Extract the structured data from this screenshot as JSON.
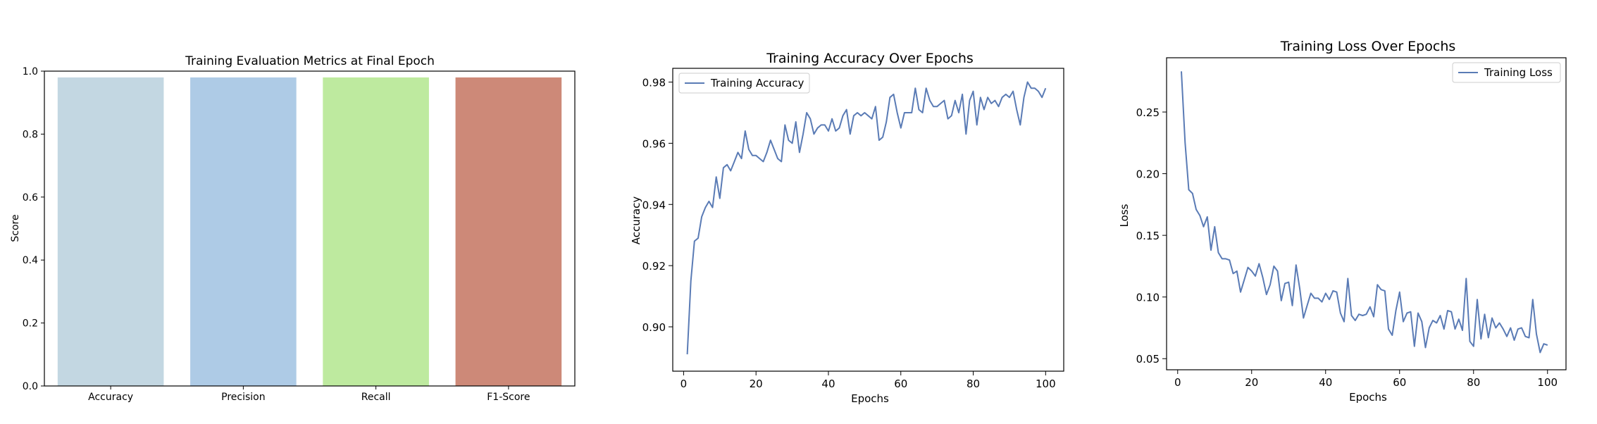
{
  "chart_data": [
    {
      "type": "bar",
      "title": "Training Evaluation Metrics at Final Epoch",
      "xlabel": "",
      "ylabel": "Score",
      "categories": [
        "Accuracy",
        "Precision",
        "Recall",
        "F1-Score"
      ],
      "values": [
        0.98,
        0.98,
        0.98,
        0.98
      ],
      "colors": [
        "#c3d7e2",
        "#aecbe6",
        "#beea9f",
        "#cd8978"
      ],
      "ylim": [
        0,
        1.0
      ],
      "yticks": [
        0.0,
        0.2,
        0.4,
        0.6,
        0.8,
        1.0
      ],
      "ytick_labels": [
        "0.0",
        "0.2",
        "0.4",
        "0.6",
        "0.8",
        "1.0"
      ],
      "grid": false,
      "legend": false
    },
    {
      "type": "line",
      "title": "Training Accuracy Over Epochs",
      "xlabel": "Epochs",
      "ylabel": "Accuracy",
      "xlim": [
        -3,
        105
      ],
      "ylim": [
        0.8855,
        0.9845
      ],
      "xticks": [
        0,
        20,
        40,
        60,
        80,
        100
      ],
      "xtick_labels": [
        "0",
        "20",
        "40",
        "60",
        "80",
        "100"
      ],
      "yticks": [
        0.9,
        0.92,
        0.94,
        0.96,
        0.98
      ],
      "ytick_labels": [
        "0.90",
        "0.92",
        "0.94",
        "0.96",
        "0.98"
      ],
      "grid": false,
      "legend_position": "top-left",
      "series": [
        {
          "name": "Training Accuracy",
          "color": "#5a7bb5",
          "x": [
            1,
            2,
            3,
            4,
            5,
            6,
            7,
            8,
            9,
            10,
            11,
            12,
            13,
            14,
            15,
            16,
            17,
            18,
            19,
            20,
            21,
            22,
            23,
            24,
            25,
            26,
            27,
            28,
            29,
            30,
            31,
            32,
            33,
            34,
            35,
            36,
            37,
            38,
            39,
            40,
            41,
            42,
            43,
            44,
            45,
            46,
            47,
            48,
            49,
            50,
            51,
            52,
            53,
            54,
            55,
            56,
            57,
            58,
            59,
            60,
            61,
            62,
            63,
            64,
            65,
            66,
            67,
            68,
            69,
            70,
            71,
            72,
            73,
            74,
            75,
            76,
            77,
            78,
            79,
            80,
            81,
            82,
            83,
            84,
            85,
            86,
            87,
            88,
            89,
            90,
            91,
            92,
            93,
            94,
            95,
            96,
            97,
            98,
            99,
            100
          ],
          "values": [
            0.891,
            0.915,
            0.928,
            0.929,
            0.936,
            0.939,
            0.941,
            0.939,
            0.949,
            0.942,
            0.952,
            0.953,
            0.951,
            0.954,
            0.957,
            0.955,
            0.964,
            0.958,
            0.956,
            0.956,
            0.955,
            0.954,
            0.957,
            0.961,
            0.958,
            0.955,
            0.954,
            0.966,
            0.961,
            0.96,
            0.967,
            0.957,
            0.963,
            0.97,
            0.968,
            0.963,
            0.965,
            0.966,
            0.966,
            0.964,
            0.968,
            0.964,
            0.965,
            0.969,
            0.971,
            0.963,
            0.969,
            0.97,
            0.969,
            0.97,
            0.969,
            0.968,
            0.972,
            0.961,
            0.962,
            0.967,
            0.975,
            0.976,
            0.97,
            0.965,
            0.97,
            0.97,
            0.97,
            0.978,
            0.971,
            0.97,
            0.978,
            0.974,
            0.972,
            0.972,
            0.973,
            0.974,
            0.968,
            0.969,
            0.974,
            0.97,
            0.976,
            0.963,
            0.974,
            0.977,
            0.966,
            0.975,
            0.971,
            0.975,
            0.973,
            0.974,
            0.972,
            0.975,
            0.976,
            0.975,
            0.977,
            0.971,
            0.966,
            0.975,
            0.98,
            0.978,
            0.978,
            0.977,
            0.975,
            0.978
          ]
        }
      ]
    },
    {
      "type": "line",
      "title": "Training Loss Over Epochs",
      "xlabel": "Epochs",
      "ylabel": "Loss",
      "xlim": [
        -3,
        105
      ],
      "ylim": [
        0.041,
        0.294
      ],
      "xticks": [
        0,
        20,
        40,
        60,
        80,
        100
      ],
      "xtick_labels": [
        "0",
        "20",
        "40",
        "60",
        "80",
        "100"
      ],
      "yticks": [
        0.05,
        0.1,
        0.15,
        0.2,
        0.25
      ],
      "ytick_labels": [
        "0.05",
        "0.10",
        "0.15",
        "0.20",
        "0.25"
      ],
      "grid": false,
      "legend_position": "top-right",
      "series": [
        {
          "name": "Training Loss",
          "color": "#5a7bb5",
          "x": [
            1,
            2,
            3,
            4,
            5,
            6,
            7,
            8,
            9,
            10,
            11,
            12,
            13,
            14,
            15,
            16,
            17,
            18,
            19,
            20,
            21,
            22,
            23,
            24,
            25,
            26,
            27,
            28,
            29,
            30,
            31,
            32,
            33,
            34,
            35,
            36,
            37,
            38,
            39,
            40,
            41,
            42,
            43,
            44,
            45,
            46,
            47,
            48,
            49,
            50,
            51,
            52,
            53,
            54,
            55,
            56,
            57,
            58,
            59,
            60,
            61,
            62,
            63,
            64,
            65,
            66,
            67,
            68,
            69,
            70,
            71,
            72,
            73,
            74,
            75,
            76,
            77,
            78,
            79,
            80,
            81,
            82,
            83,
            84,
            85,
            86,
            87,
            88,
            89,
            90,
            91,
            92,
            93,
            94,
            95,
            96,
            97,
            98,
            99,
            100
          ],
          "values": [
            0.283,
            0.225,
            0.187,
            0.184,
            0.171,
            0.166,
            0.157,
            0.165,
            0.138,
            0.157,
            0.136,
            0.131,
            0.131,
            0.13,
            0.119,
            0.121,
            0.104,
            0.114,
            0.124,
            0.121,
            0.117,
            0.127,
            0.116,
            0.102,
            0.11,
            0.125,
            0.121,
            0.097,
            0.111,
            0.112,
            0.093,
            0.126,
            0.107,
            0.083,
            0.093,
            0.103,
            0.099,
            0.099,
            0.096,
            0.103,
            0.098,
            0.105,
            0.104,
            0.087,
            0.08,
            0.115,
            0.085,
            0.081,
            0.086,
            0.085,
            0.086,
            0.092,
            0.084,
            0.11,
            0.106,
            0.105,
            0.074,
            0.069,
            0.089,
            0.104,
            0.08,
            0.087,
            0.088,
            0.06,
            0.087,
            0.08,
            0.059,
            0.075,
            0.081,
            0.079,
            0.085,
            0.074,
            0.089,
            0.088,
            0.074,
            0.082,
            0.073,
            0.115,
            0.064,
            0.06,
            0.098,
            0.066,
            0.086,
            0.067,
            0.083,
            0.075,
            0.079,
            0.074,
            0.068,
            0.075,
            0.065,
            0.074,
            0.075,
            0.068,
            0.067,
            0.098,
            0.07,
            0.055,
            0.062,
            0.061
          ]
        }
      ]
    }
  ]
}
